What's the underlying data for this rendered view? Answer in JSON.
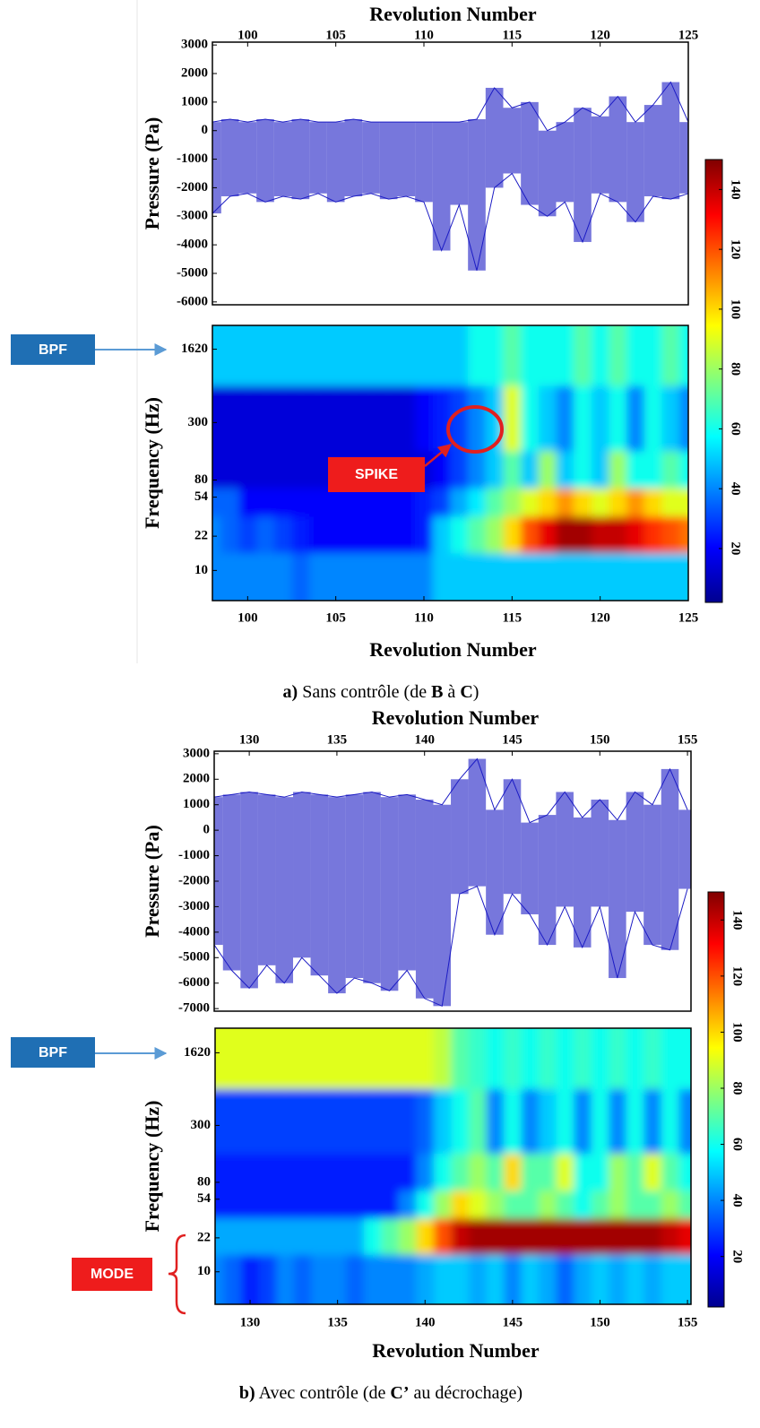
{
  "chart_data": [
    {
      "type": "band",
      "title": "Revolution Number",
      "ylabel": "Pressure (Pa)",
      "color": "#1c1cc4",
      "x": [
        98,
        99,
        100,
        101,
        102,
        103,
        104,
        105,
        106,
        107,
        108,
        109,
        110,
        111,
        112,
        113,
        114,
        115,
        116,
        117,
        118,
        119,
        120,
        121,
        122,
        123,
        124,
        125
      ],
      "high": [
        300,
        400,
        300,
        400,
        300,
        400,
        300,
        300,
        400,
        300,
        300,
        300,
        300,
        300,
        300,
        400,
        1500,
        800,
        1000,
        0,
        300,
        800,
        500,
        1200,
        300,
        900,
        1700,
        300
      ],
      "low": [
        -2900,
        -2300,
        -2200,
        -2500,
        -2300,
        -2400,
        -2200,
        -2500,
        -2300,
        -2200,
        -2400,
        -2300,
        -2500,
        -4200,
        -2600,
        -4900,
        -2000,
        -1500,
        -2600,
        -3000,
        -2500,
        -3900,
        -2200,
        -2500,
        -3200,
        -2300,
        -2400,
        -2200
      ],
      "xlim": [
        98,
        125
      ],
      "xticks": [
        100,
        105,
        110,
        115,
        120,
        125
      ],
      "ylim": [
        -6100,
        3100
      ],
      "yticks": [
        3000,
        2000,
        1000,
        0,
        -1000,
        -2000,
        -3000,
        -4000,
        -5000,
        -6000
      ]
    },
    {
      "type": "heatmap",
      "xlabel": "Revolution Number",
      "ylabel": "Frequency (Hz)",
      "colormap": "jet",
      "ylog": true,
      "x": [
        98,
        99,
        100,
        101,
        102,
        103,
        104,
        105,
        106,
        107,
        108,
        109,
        110,
        111,
        112,
        113,
        114,
        115,
        116,
        117,
        118,
        119,
        120,
        121,
        122,
        123,
        124,
        125
      ],
      "y": [
        1620,
        300,
        80,
        54,
        22,
        10
      ],
      "z": [
        [
          50,
          50,
          50,
          50,
          50,
          50,
          50,
          50,
          50,
          50,
          50,
          50,
          50,
          50,
          50,
          60,
          60,
          70,
          60,
          60,
          60,
          70,
          60,
          70,
          60,
          60,
          70,
          60
        ],
        [
          15,
          15,
          15,
          15,
          15,
          15,
          15,
          15,
          15,
          15,
          15,
          15,
          20,
          25,
          30,
          40,
          50,
          90,
          60,
          50,
          40,
          60,
          50,
          60,
          40,
          60,
          50,
          40
        ],
        [
          15,
          15,
          15,
          15,
          15,
          15,
          15,
          15,
          15,
          15,
          15,
          15,
          15,
          20,
          30,
          40,
          50,
          70,
          50,
          80,
          50,
          60,
          50,
          80,
          60,
          60,
          70,
          60
        ],
        [
          35,
          35,
          20,
          20,
          20,
          20,
          20,
          20,
          20,
          20,
          20,
          20,
          25,
          30,
          45,
          55,
          70,
          80,
          90,
          100,
          110,
          100,
          90,
          100,
          110,
          100,
          90,
          90
        ],
        [
          40,
          35,
          30,
          35,
          30,
          25,
          20,
          20,
          20,
          20,
          20,
          20,
          25,
          50,
          60,
          70,
          80,
          100,
          120,
          135,
          145,
          145,
          140,
          140,
          135,
          125,
          120,
          115
        ],
        [
          40,
          40,
          40,
          40,
          40,
          35,
          40,
          40,
          40,
          40,
          40,
          40,
          40,
          50,
          50,
          50,
          50,
          50,
          50,
          50,
          50,
          50,
          50,
          50,
          50,
          50,
          50,
          50
        ]
      ],
      "xlim": [
        98,
        125
      ],
      "xticks": [
        100,
        105,
        110,
        115,
        120,
        125
      ],
      "ylim": [
        5,
        2800
      ],
      "yticks": [
        1620,
        300,
        80,
        54,
        22,
        10
      ],
      "clim": [
        2,
        150
      ],
      "cticks": [
        20,
        40,
        60,
        80,
        100,
        120,
        140
      ]
    },
    {
      "type": "band",
      "title": "Revolution Number",
      "ylabel": "Pressure (Pa)",
      "color": "#1c1cc4",
      "x": [
        128,
        129,
        130,
        131,
        132,
        133,
        134,
        135,
        136,
        137,
        138,
        139,
        140,
        141,
        142,
        143,
        144,
        145,
        146,
        147,
        148,
        149,
        150,
        151,
        152,
        153,
        154,
        155
      ],
      "high": [
        1300,
        1400,
        1500,
        1400,
        1300,
        1500,
        1400,
        1300,
        1400,
        1500,
        1300,
        1400,
        1200,
        1000,
        2000,
        2800,
        800,
        2000,
        300,
        600,
        1500,
        500,
        1200,
        400,
        1500,
        1000,
        2400,
        800
      ],
      "low": [
        -4500,
        -5500,
        -6200,
        -5300,
        -6000,
        -5000,
        -5700,
        -6400,
        -5800,
        -6000,
        -6300,
        -5500,
        -6600,
        -6900,
        -2500,
        -2200,
        -4100,
        -2500,
        -3300,
        -4500,
        -3000,
        -4600,
        -3000,
        -5800,
        -3200,
        -4500,
        -4700,
        -2300
      ],
      "xlim": [
        128,
        155.2
      ],
      "xticks": [
        130,
        135,
        140,
        145,
        150,
        155
      ],
      "ylim": [
        -7100,
        3100
      ],
      "yticks": [
        3000,
        2000,
        1000,
        0,
        -1000,
        -2000,
        -3000,
        -4000,
        -5000,
        -6000,
        -7000
      ]
    },
    {
      "type": "heatmap",
      "xlabel": "Revolution Number",
      "ylabel": "Frequency (Hz)",
      "colormap": "jet",
      "ylog": true,
      "x": [
        128,
        129,
        130,
        131,
        132,
        133,
        134,
        135,
        136,
        137,
        138,
        139,
        140,
        141,
        142,
        143,
        144,
        145,
        146,
        147,
        148,
        149,
        150,
        151,
        152,
        153,
        154,
        155
      ],
      "y": [
        1620,
        300,
        80,
        54,
        22,
        10
      ],
      "z": [
        [
          90,
          90,
          90,
          90,
          90,
          90,
          90,
          90,
          90,
          90,
          90,
          90,
          90,
          85,
          70,
          65,
          60,
          65,
          60,
          65,
          60,
          65,
          60,
          65,
          60,
          65,
          60,
          60
        ],
        [
          30,
          30,
          30,
          30,
          30,
          30,
          30,
          30,
          30,
          30,
          30,
          30,
          35,
          50,
          60,
          70,
          40,
          60,
          40,
          50,
          60,
          40,
          60,
          40,
          60,
          40,
          60,
          40
        ],
        [
          25,
          25,
          25,
          25,
          25,
          25,
          25,
          25,
          25,
          25,
          25,
          25,
          40,
          60,
          70,
          80,
          70,
          100,
          70,
          70,
          90,
          60,
          60,
          80,
          70,
          90,
          70,
          60
        ],
        [
          25,
          25,
          25,
          25,
          25,
          25,
          25,
          25,
          25,
          25,
          25,
          40,
          60,
          80,
          100,
          90,
          80,
          70,
          70,
          80,
          70,
          60,
          70,
          80,
          70,
          70,
          80,
          70
        ],
        [
          45,
          45,
          45,
          45,
          45,
          45,
          45,
          45,
          45,
          60,
          70,
          80,
          100,
          120,
          140,
          145,
          145,
          145,
          145,
          145,
          145,
          145,
          145,
          145,
          145,
          145,
          140,
          135
        ],
        [
          40,
          35,
          25,
          30,
          40,
          35,
          40,
          40,
          35,
          40,
          40,
          40,
          45,
          50,
          50,
          45,
          50,
          40,
          50,
          45,
          35,
          45,
          50,
          45,
          50,
          45,
          50,
          50
        ]
      ],
      "xlim": [
        128,
        155.2
      ],
      "xticks": [
        130,
        135,
        140,
        145,
        150,
        155
      ],
      "ylim": [
        4.7,
        2870
      ],
      "yticks": [
        1620,
        300,
        80,
        54,
        22,
        10
      ],
      "clim": [
        2,
        150
      ],
      "cticks": [
        20,
        40,
        60,
        80,
        100,
        120,
        140
      ]
    }
  ],
  "annotations": {
    "a": {
      "bpf": "BPF",
      "spike": "SPIKE",
      "caption": [
        {
          "text": "a)",
          "bold": true
        },
        {
          "text": " Sans contrôle (de ",
          "bold": false
        },
        {
          "text": "B",
          "bold": true
        },
        {
          "text": " à ",
          "bold": false
        },
        {
          "text": "C",
          "bold": true
        },
        {
          "text": ")",
          "bold": false
        }
      ]
    },
    "b": {
      "bpf": "BPF",
      "mode": "MODE",
      "caption": [
        {
          "text": "b)",
          "bold": true
        },
        {
          "text": " Avec contrôle (de ",
          "bold": false
        },
        {
          "text": "C’",
          "bold": true
        },
        {
          "text": " au décrochage)",
          "bold": false
        }
      ]
    }
  }
}
